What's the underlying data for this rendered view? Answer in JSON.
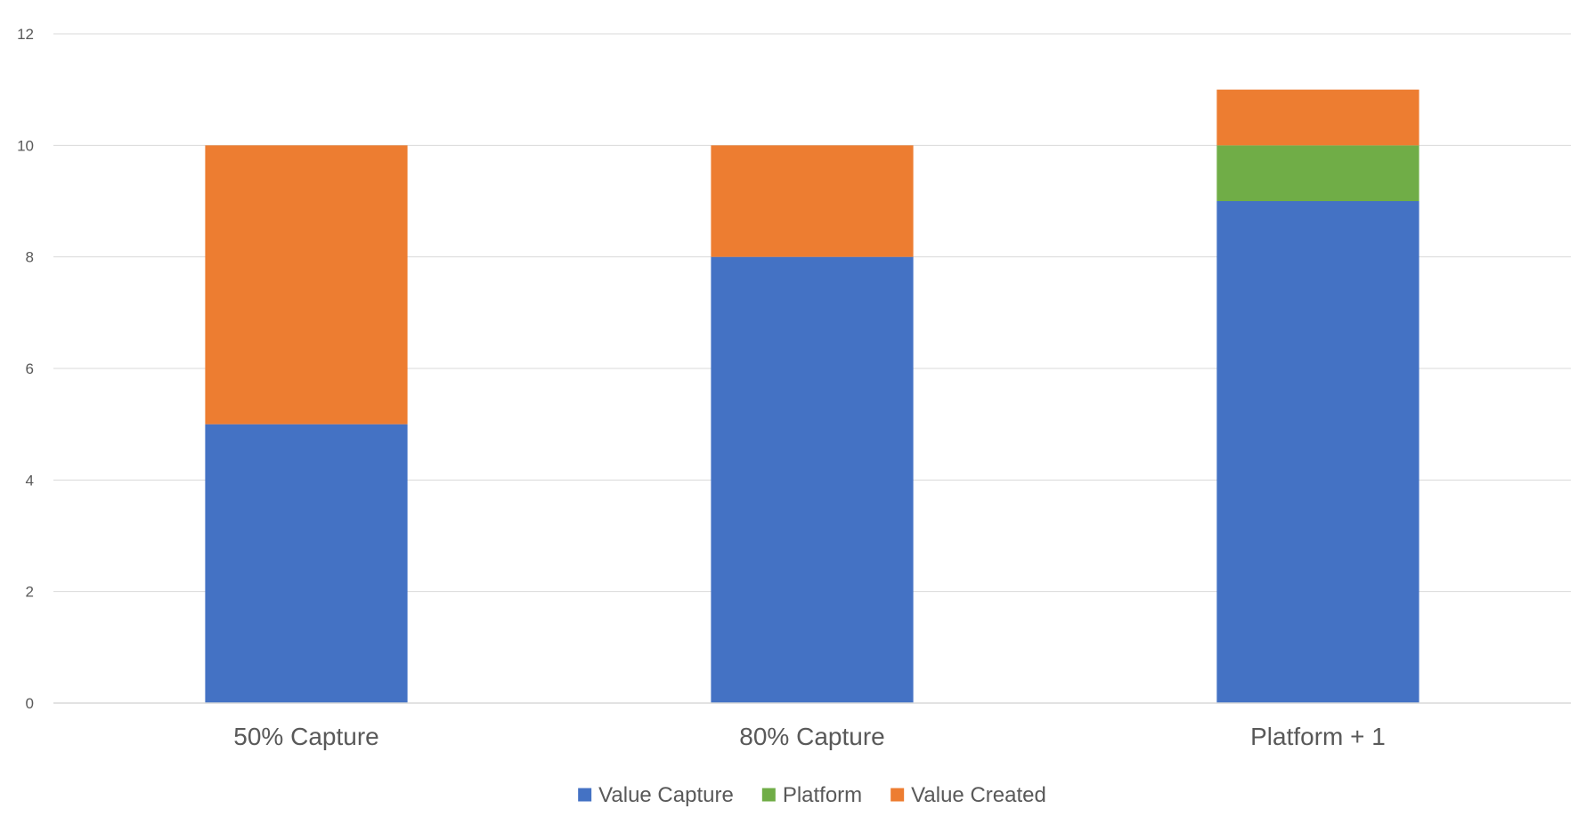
{
  "chart_data": {
    "type": "bar",
    "stacked": true,
    "categories": [
      "50% Capture",
      "80% Capture",
      "Platform + 1"
    ],
    "series": [
      {
        "name": "Value Capture",
        "values": [
          5,
          8,
          9
        ],
        "color": "#4472C4"
      },
      {
        "name": "Platform",
        "values": [
          0,
          0,
          1
        ],
        "color": "#70AD47"
      },
      {
        "name": "Value Created",
        "values": [
          5,
          2,
          1
        ],
        "color": "#ED7D31"
      }
    ],
    "ylim": [
      0,
      12
    ],
    "yticks": [
      "0",
      "2",
      "4",
      "6",
      "8",
      "10",
      "12"
    ],
    "grid": true,
    "gridline_color": "#D9D9D9",
    "legend_position": "bottom"
  }
}
